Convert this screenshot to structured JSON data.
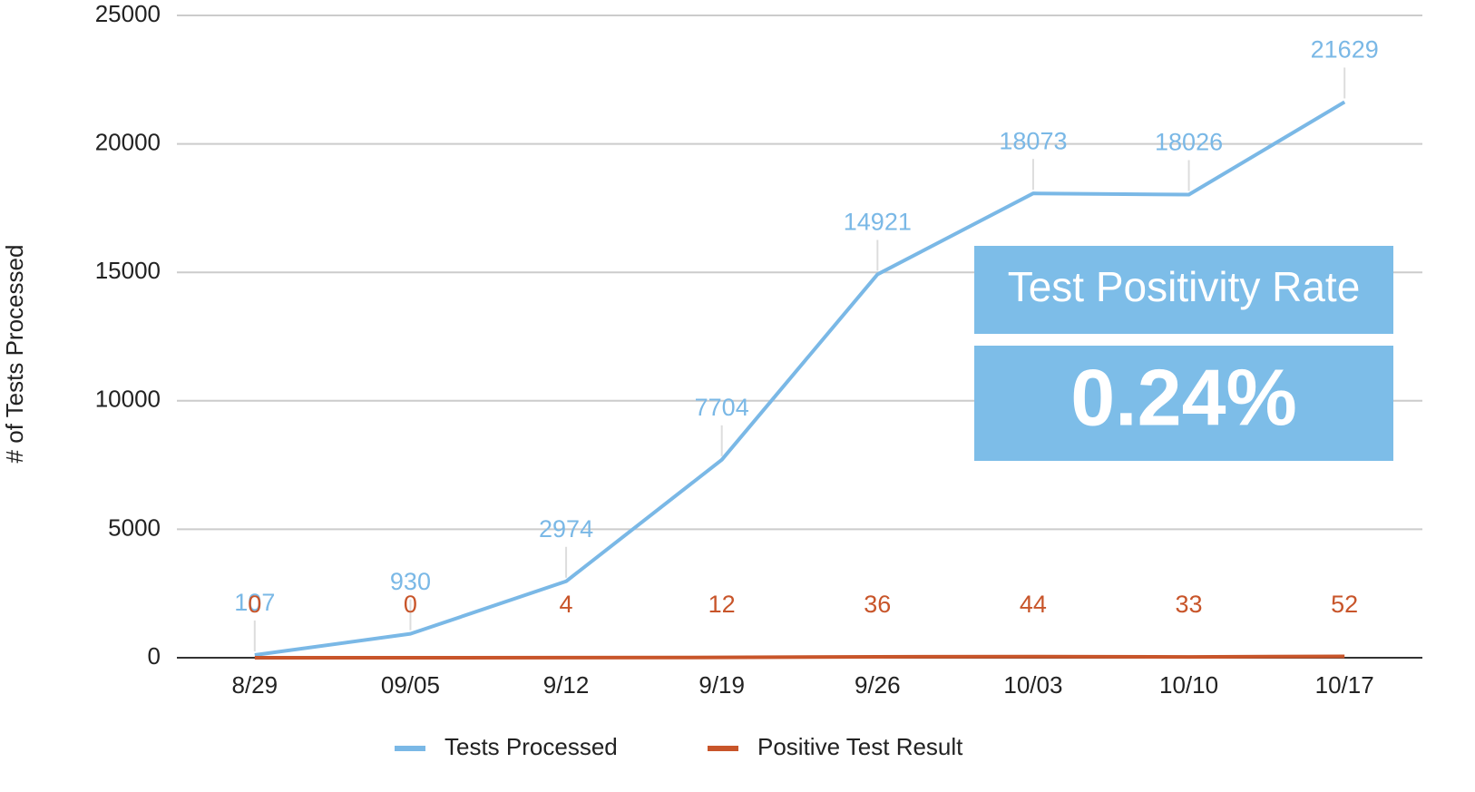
{
  "chart_data": {
    "type": "line",
    "y_label": "# of Tests Processed",
    "categories": [
      "8/29",
      "09/05",
      "9/12",
      "9/19",
      "9/26",
      "10/03",
      "10/10",
      "10/17"
    ],
    "series": [
      {
        "name": "Tests Processed",
        "color": "#7ab8e6",
        "values": [
          107,
          930,
          2974,
          7704,
          14921,
          18073,
          18026,
          21629
        ]
      },
      {
        "name": "Positive Test Result",
        "color": "#c8552a",
        "values": [
          0,
          0,
          4,
          12,
          36,
          44,
          33,
          52
        ]
      }
    ],
    "ylim": [
      0,
      25000
    ],
    "yticks": [
      0,
      5000,
      10000,
      15000,
      20000,
      25000
    ],
    "grid": true,
    "annotation": {
      "title": "Test Positivity Rate",
      "value": "0.24%",
      "color": "#7dbde8"
    }
  }
}
